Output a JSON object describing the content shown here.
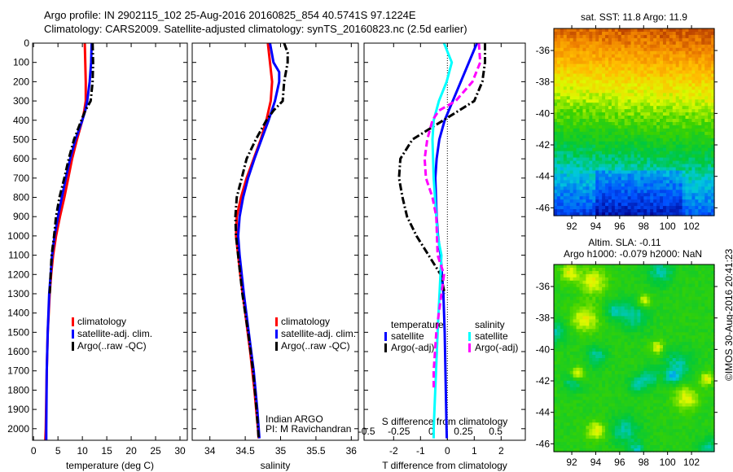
{
  "title": {
    "line1": "Argo profile: IN 2902115_102 25-Aug-2016 20160825_854 40.5741S 97.1224E",
    "line2": "Climatology: CARS2009. Satellite-adjusted climatology: synTS_20160823.nc (2.5d earlier)"
  },
  "credit": "©IMOS 30-Aug-2016 20:41:23",
  "attribution": {
    "line1": "Indian ARGO",
    "line2": "PI: M Ravichandran"
  },
  "colors": {
    "climatology": "#ff0000",
    "satellite": "#0000ff",
    "argo": "#000000",
    "sal_sat": "#00ffff",
    "sal_argo": "#ff00ff"
  },
  "chart_data": [
    {
      "type": "line",
      "name": "temperature-profile",
      "xlabel": "temperature (deg C)",
      "xlim": [
        -0.2,
        31.5
      ],
      "xticks": [
        0,
        5,
        10,
        15,
        20,
        25,
        30
      ],
      "ylim": [
        0,
        2060
      ],
      "yticks": [
        0,
        100,
        200,
        300,
        400,
        500,
        600,
        700,
        800,
        900,
        1000,
        1100,
        1200,
        1300,
        1400,
        1500,
        1600,
        1700,
        1800,
        1900,
        2000
      ],
      "legend": [
        "climatology",
        "satellite-adj. clim.",
        "Argo(..raw -QC)"
      ],
      "series": [
        {
          "name": "climatology",
          "color": "#ff0000",
          "depth": [
            0,
            100,
            200,
            300,
            350,
            400,
            500,
            600,
            700,
            800,
            900,
            1000,
            1100,
            1200,
            1300,
            1400,
            1500,
            1700,
            2000,
            2060
          ],
          "values": [
            10.5,
            10.6,
            10.7,
            10.7,
            10.4,
            10,
            8.9,
            7.9,
            7.1,
            6.3,
            5.4,
            4.6,
            4,
            3.6,
            3.3,
            3.1,
            2.9,
            2.7,
            2.5,
            2.4
          ]
        },
        {
          "name": "satellite-adj. clim.",
          "color": "#0000ff",
          "depth": [
            0,
            100,
            200,
            300,
            350,
            400,
            500,
            600,
            700,
            800,
            900,
            1000,
            1100,
            1200,
            1300,
            1500,
            1700,
            2000,
            2060
          ],
          "values": [
            11.9,
            11.8,
            11.5,
            11,
            10.6,
            10,
            8.6,
            7.5,
            6.6,
            5.8,
            5,
            4.3,
            3.8,
            3.5,
            3.2,
            2.9,
            2.7,
            2.6,
            2.6
          ]
        },
        {
          "name": "Argo(..raw -QC)",
          "color": "#000000",
          "depth": [
            0,
            100,
            200,
            300,
            350,
            400,
            500,
            600,
            700,
            800,
            900,
            1000,
            1100,
            1200,
            1300
          ],
          "values": [
            12.1,
            12.2,
            12.1,
            11.7,
            10.6,
            9.8,
            8.3,
            7.2,
            6.3,
            5.3,
            4.6,
            4.2,
            3.7,
            3.5,
            3.3
          ]
        }
      ]
    },
    {
      "type": "line",
      "name": "salinity-profile",
      "xlabel": "salinity",
      "xlim": [
        33.75,
        36.1
      ],
      "xticks": [
        34,
        34.5,
        35,
        35.5,
        36
      ],
      "ylim": [
        0,
        2060
      ],
      "legend": [
        "climatology",
        "satellite-adj. clim.",
        "Argo(..raw -QC)"
      ],
      "series": [
        {
          "name": "climatology",
          "color": "#ff0000",
          "depth": [
            0,
            100,
            200,
            300,
            400,
            500,
            600,
            700,
            800,
            900,
            1000,
            1100,
            1200,
            1400,
            1600,
            1800,
            2000,
            2050
          ],
          "values": [
            34.82,
            34.85,
            34.88,
            34.86,
            34.8,
            34.72,
            34.62,
            34.52,
            34.44,
            34.38,
            34.37,
            34.4,
            34.43,
            34.5,
            34.57,
            34.63,
            34.68,
            34.69
          ]
        },
        {
          "name": "satellite-adj. clim.",
          "color": "#0000ff",
          "depth": [
            0,
            100,
            150,
            200,
            300,
            400,
            500,
            600,
            700,
            800,
            900,
            1000,
            1100,
            1300,
            1500,
            1700,
            1900,
            2050
          ],
          "values": [
            34.85,
            34.9,
            34.98,
            34.98,
            34.92,
            34.83,
            34.73,
            34.63,
            34.54,
            34.47,
            34.42,
            34.4,
            34.42,
            34.48,
            34.55,
            34.62,
            34.67,
            34.7
          ]
        },
        {
          "name": "Argo(..raw -QC)",
          "color": "#000000",
          "depth": [
            0,
            50,
            100,
            200,
            300,
            350,
            400,
            500,
            600,
            700,
            800,
            900,
            1000,
            1100,
            1300,
            1500,
            1700,
            1900,
            2050
          ],
          "values": [
            35.05,
            35.1,
            35.1,
            35.05,
            35.03,
            34.9,
            34.8,
            34.65,
            34.52,
            34.45,
            34.38,
            34.36,
            34.37,
            34.4,
            34.46,
            34.54,
            34.61,
            34.66,
            34.69
          ]
        }
      ]
    },
    {
      "type": "line",
      "name": "difference-profile",
      "xlabel": "T difference from climatology",
      "xlabel_top": "S difference from climatology",
      "xlim": [
        -3.1,
        2.9
      ],
      "xticks": [
        -2,
        -1,
        0,
        1,
        2
      ],
      "s_xlim": [
        -0.52,
        0.73
      ],
      "s_xticks": [
        -0.5,
        -0.25,
        0,
        0.25,
        0.5
      ],
      "s_xticklabels": [
        "-0.5",
        "-0.25",
        "0",
        "0.25",
        "0.5"
      ],
      "ylim": [
        0,
        2060
      ],
      "legend": {
        "temperature": "temperature",
        "salinity": "salinity",
        "satellite": "satellite",
        "argo": "Argo(-adj)"
      },
      "series": [
        {
          "name": "T satellite",
          "axis": "T",
          "color": "#0000ff",
          "depth": [
            0,
            100,
            200,
            300,
            400,
            500,
            600,
            700,
            900,
            1000,
            1100,
            1300,
            1500,
            2000,
            2050
          ],
          "values": [
            1.1,
            0.8,
            0.5,
            0.2,
            -0.1,
            -0.3,
            -0.4,
            -0.45,
            -0.4,
            -0.35,
            -0.25,
            -0.15,
            -0.1,
            -0.03,
            -0.02
          ]
        },
        {
          "name": "T Argo(-adj)",
          "axis": "T",
          "color": "#000000",
          "depth": [
            0,
            100,
            200,
            300,
            400,
            500,
            600,
            700,
            800,
            900,
            1000,
            1100,
            1200,
            1300
          ],
          "values": [
            1.4,
            1.4,
            1.3,
            1.0,
            -0.15,
            -1.3,
            -1.75,
            -1.8,
            -1.67,
            -1.5,
            -1.15,
            -0.7,
            -0.25,
            -0.1
          ]
        },
        {
          "name": "S satellite",
          "axis": "S",
          "color": "#00ffff",
          "depth": [
            0,
            100,
            200,
            300,
            400,
            500,
            700,
            1000,
            1100,
            1500,
            2000,
            2050
          ],
          "values": [
            0.1,
            0.16,
            0.12,
            0.06,
            0.02,
            0.01,
            0.02,
            0.05,
            0.08,
            0.05,
            0.02,
            0.02
          ]
        },
        {
          "name": "S Argo(-adj)",
          "axis": "S",
          "color": "#ff00ff",
          "depth": [
            0,
            100,
            200,
            300,
            350,
            400,
            500,
            600,
            700,
            800,
            900,
            1100,
            1200,
            1300,
            1500,
            1700,
            1800
          ],
          "values": [
            0.37,
            0.38,
            0.32,
            0.19,
            0.06,
            0.01,
            -0.03,
            -0.05,
            -0.04,
            0.01,
            0.04,
            0.05,
            0.1,
            0.08,
            0.04,
            0.02,
            0.02
          ]
        }
      ]
    },
    {
      "type": "heatmap",
      "name": "sst-map",
      "title": "sat. SST: 11.8 Argo: 11.9",
      "xlim": [
        90.5,
        103.9
      ],
      "ylim": [
        -46.5,
        -34.6
      ],
      "xticks": [
        92,
        94,
        96,
        98,
        100,
        102
      ],
      "yticks": [
        -36,
        -38,
        -40,
        -42,
        -44,
        -46
      ]
    },
    {
      "type": "heatmap",
      "name": "sla-map",
      "title_line1": "Altim. SLA: -0.11",
      "title_line2": "Argo h1000: -0.079 h2000: NaN",
      "xlim": [
        90.5,
        103.9
      ],
      "ylim": [
        -46.5,
        -34.6
      ],
      "xticks": [
        92,
        94,
        96,
        98,
        100,
        102
      ],
      "yticks": [
        -36,
        -38,
        -40,
        -42,
        -44,
        -46
      ]
    }
  ]
}
